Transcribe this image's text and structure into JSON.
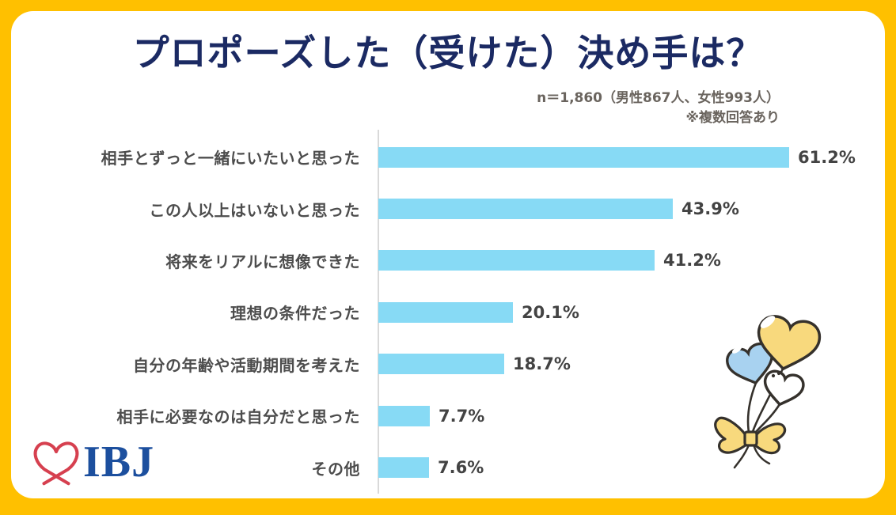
{
  "frame": {
    "border_color": "#FFC000",
    "card_color": "#FFFFFF"
  },
  "header": {
    "title": "プロポーズした（受けた）決め手は？",
    "sample_note": "n＝1,860（男性867人、女性993人）",
    "multi_answer_note": "※複数回答あり"
  },
  "chart_data": {
    "type": "bar",
    "orientation": "horizontal",
    "title": "プロポーズした（受けた）決め手は？",
    "categories": [
      "相手とずっと一緒にいたいと思った",
      "この人以上はいないと思った",
      "将来をリアルに想像できた",
      "理想の条件だった",
      "自分の年齢や活動期間を考えた",
      "相手に必要なのは自分だと思った",
      "その他"
    ],
    "values": [
      61.2,
      43.9,
      41.2,
      20.1,
      18.7,
      7.7,
      7.6
    ],
    "value_labels": [
      "61.2%",
      "43.9%",
      "41.2%",
      "20.1%",
      "18.7%",
      "7.7%",
      "7.6%"
    ],
    "unit": "%",
    "xlim": [
      0,
      66
    ],
    "grid": false,
    "legend": "none",
    "bar_color": "#87DAF5",
    "axis_line_color": "#D9D9D9",
    "category_label_color": "#4D4D4D",
    "value_label_color": "#434343"
  },
  "logo": {
    "text": "IBJ",
    "text_color": "#1C4F9E",
    "heart_color": "#D6404F"
  },
  "illustration": {
    "name": "heart-balloon-bouquet",
    "balloon_colors": [
      "#F8D97D",
      "#A8D2F0",
      "#FFFFFF"
    ],
    "ribbon_color": "#F8D97D",
    "outline_color": "#35312C"
  },
  "colors": {
    "title": "#1B2A63",
    "note": "#6A645E"
  }
}
